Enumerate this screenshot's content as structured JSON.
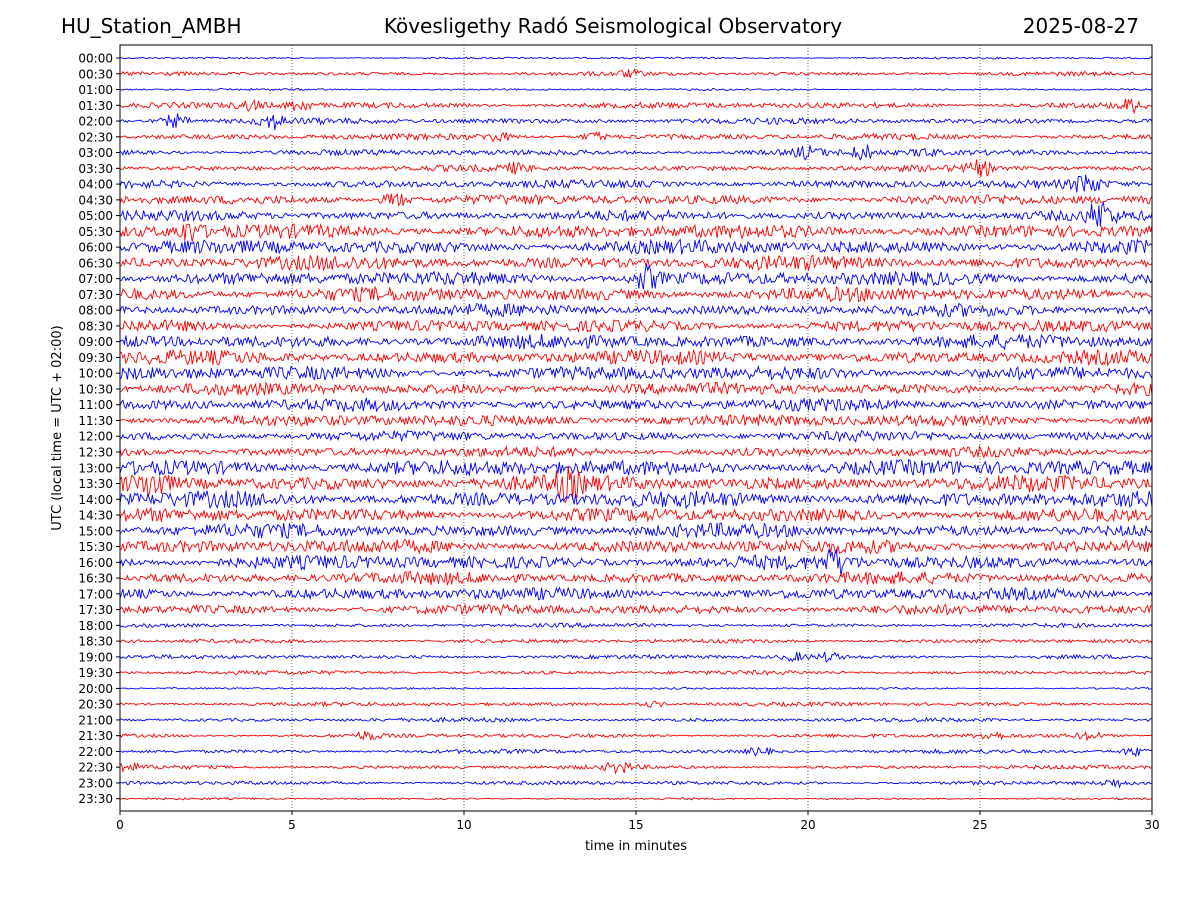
{
  "header": {
    "station": "HU_Station_AMBH",
    "title": "Kövesligethy Radó Seismological Observatory",
    "date": "2025-08-27"
  },
  "chart_data": {
    "type": "line",
    "xlabel": "time in minutes",
    "ylabel": "UTC (local time = UTC + 02:00)",
    "xlim": [
      0,
      30
    ],
    "x_ticks": [
      0,
      5,
      10,
      15,
      20,
      25,
      30
    ],
    "grid": "vertical dotted lines at x ticks",
    "series_colors": [
      "#0000ff",
      "#ff0000"
    ],
    "row_labels": [
      "00:00",
      "00:30",
      "01:00",
      "01:30",
      "02:00",
      "02:30",
      "03:00",
      "03:30",
      "04:00",
      "04:30",
      "05:00",
      "05:30",
      "06:00",
      "06:30",
      "07:00",
      "07:30",
      "08:00",
      "08:30",
      "09:00",
      "09:30",
      "10:00",
      "10:30",
      "11:00",
      "11:30",
      "12:00",
      "12:30",
      "13:00",
      "13:30",
      "14:00",
      "14:30",
      "15:00",
      "15:30",
      "16:00",
      "16:30",
      "17:00",
      "17:30",
      "18:00",
      "18:30",
      "19:00",
      "19:30",
      "20:00",
      "20:30",
      "21:00",
      "21:30",
      "22:00",
      "22:30",
      "23:00",
      "23:30"
    ],
    "row_noise_level": [
      1,
      2,
      1,
      3,
      3,
      3,
      3,
      3,
      4,
      5,
      5,
      7,
      7,
      7,
      7,
      7,
      6,
      6,
      7,
      7,
      7,
      6,
      6,
      6,
      5,
      5,
      8,
      8,
      8,
      7,
      7,
      7,
      7,
      6,
      6,
      5,
      2,
      2,
      2,
      2,
      1,
      2,
      2,
      2,
      2,
      2,
      2,
      1
    ],
    "events": [
      {
        "row": "00:30",
        "t": 14.8,
        "amp": 2
      },
      {
        "row": "01:30",
        "t": 3.8,
        "amp": 3
      },
      {
        "row": "01:30",
        "t": 5.2,
        "amp": 4
      },
      {
        "row": "01:30",
        "t": 29.4,
        "amp": 4
      },
      {
        "row": "02:00",
        "t": 1.6,
        "amp": 5
      },
      {
        "row": "02:00",
        "t": 4.4,
        "amp": 5
      },
      {
        "row": "02:30",
        "t": 11.0,
        "amp": 3
      },
      {
        "row": "02:30",
        "t": 13.8,
        "amp": 3
      },
      {
        "row": "03:00",
        "t": 20.0,
        "amp": 4
      },
      {
        "row": "03:00",
        "t": 21.6,
        "amp": 5
      },
      {
        "row": "03:00",
        "t": 23.4,
        "amp": 3
      },
      {
        "row": "03:30",
        "t": 11.5,
        "amp": 3
      },
      {
        "row": "03:30",
        "t": 25.0,
        "amp": 5
      },
      {
        "row": "04:00",
        "t": 28.1,
        "amp": 7
      },
      {
        "row": "04:30",
        "t": 8.0,
        "amp": 5
      },
      {
        "row": "05:00",
        "t": 28.5,
        "amp": 9
      },
      {
        "row": "05:30",
        "t": 2.0,
        "amp": 6
      },
      {
        "row": "07:00",
        "t": 15.3,
        "amp": 8
      },
      {
        "row": "13:30",
        "t": 1.0,
        "amp": 8
      },
      {
        "row": "13:30",
        "t": 13.0,
        "amp": 8
      },
      {
        "row": "16:00",
        "t": 20.8,
        "amp": 8
      },
      {
        "row": "19:00",
        "t": 19.6,
        "amp": 3
      },
      {
        "row": "19:00",
        "t": 20.6,
        "amp": 3
      },
      {
        "row": "20:30",
        "t": 15.5,
        "amp": 2
      },
      {
        "row": "21:30",
        "t": 7.2,
        "amp": 3
      },
      {
        "row": "21:30",
        "t": 25.3,
        "amp": 3
      },
      {
        "row": "21:30",
        "t": 28.2,
        "amp": 3
      },
      {
        "row": "22:00",
        "t": 18.6,
        "amp": 3
      },
      {
        "row": "22:00",
        "t": 29.5,
        "amp": 3
      },
      {
        "row": "22:30",
        "t": 0.2,
        "amp": 3
      },
      {
        "row": "22:30",
        "t": 14.5,
        "amp": 4
      },
      {
        "row": "23:00",
        "t": 28.9,
        "amp": 3
      }
    ]
  }
}
